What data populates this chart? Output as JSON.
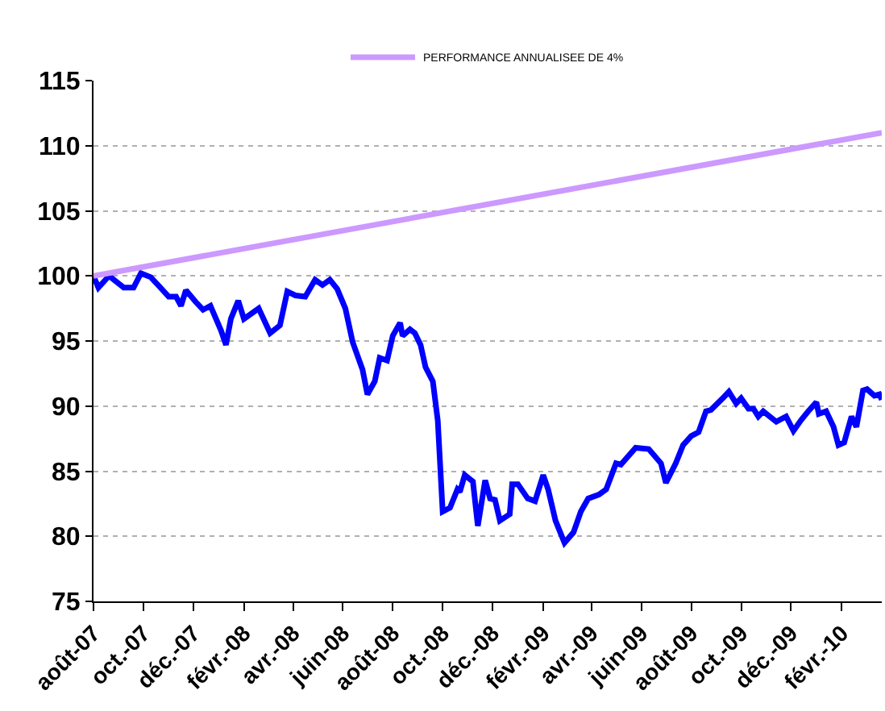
{
  "chart_data": {
    "type": "line",
    "legend": "top",
    "grid": "y",
    "line_style": "solid",
    "marker": "none",
    "xlim": [
      "2007-08-01",
      "2010-03-22"
    ],
    "ylim": [
      75,
      115
    ],
    "yticks": [
      75,
      80,
      85,
      90,
      95,
      100,
      105,
      110,
      115
    ],
    "xticks": [
      {
        "value": "2007-08-01",
        "label": "août-07"
      },
      {
        "value": "2007-10-01",
        "label": "oct.-07"
      },
      {
        "value": "2007-12-01",
        "label": "déc.-07"
      },
      {
        "value": "2008-02-01",
        "label": "févr.-08"
      },
      {
        "value": "2008-04-01",
        "label": "avr.-08"
      },
      {
        "value": "2008-06-01",
        "label": "juin-08"
      },
      {
        "value": "2008-08-01",
        "label": "août-08"
      },
      {
        "value": "2008-10-01",
        "label": "oct.-08"
      },
      {
        "value": "2008-12-01",
        "label": "déc.-08"
      },
      {
        "value": "2009-02-01",
        "label": "févr.-09"
      },
      {
        "value": "2009-04-01",
        "label": "avr.-09"
      },
      {
        "value": "2009-06-01",
        "label": "juin-09"
      },
      {
        "value": "2009-08-01",
        "label": "août-09"
      },
      {
        "value": "2009-10-01",
        "label": "oct.-09"
      },
      {
        "value": "2009-12-01",
        "label": "déc.-09"
      },
      {
        "value": "2010-02-01",
        "label": "févr.-10"
      }
    ],
    "series": [
      {
        "color": "#0000ff",
        "x": [
          "2007-08-01",
          "2007-08-07",
          "2007-08-20",
          "2007-09-07",
          "2007-09-19",
          "2007-09-28",
          "2007-10-10",
          "2007-10-19",
          "2007-11-01",
          "2007-11-10",
          "2007-11-16",
          "2007-11-22",
          "2007-12-04",
          "2007-12-13",
          "2007-12-22",
          "2008-01-04",
          "2008-01-10",
          "2008-01-16",
          "2008-01-25",
          "2008-02-01",
          "2008-02-19",
          "2008-03-04",
          "2008-03-16",
          "2008-03-25",
          "2008-04-04",
          "2008-04-16",
          "2008-04-28",
          "2008-05-07",
          "2008-05-16",
          "2008-05-25",
          "2008-06-04",
          "2008-06-13",
          "2008-06-25",
          "2008-07-01",
          "2008-07-10",
          "2008-07-16",
          "2008-07-25",
          "2008-08-01",
          "2008-08-10",
          "2008-08-13",
          "2008-08-22",
          "2008-08-28",
          "2008-09-04",
          "2008-09-10",
          "2008-09-19",
          "2008-09-25",
          "2008-10-01",
          "2008-10-10",
          "2008-10-19",
          "2008-10-22",
          "2008-10-28",
          "2008-11-07",
          "2008-11-13",
          "2008-11-22",
          "2008-11-28",
          "2008-12-04",
          "2008-12-10",
          "2008-12-22",
          "2008-12-25",
          "2009-01-01",
          "2009-01-13",
          "2009-01-22",
          "2009-02-01",
          "2009-02-07",
          "2009-02-16",
          "2009-02-27",
          "2009-03-10",
          "2009-03-19",
          "2009-03-28",
          "2009-04-10",
          "2009-04-19",
          "2009-05-01",
          "2009-05-07",
          "2009-05-25",
          "2009-06-10",
          "2009-06-25",
          "2009-07-01",
          "2009-07-13",
          "2009-07-22",
          "2009-08-01",
          "2009-08-10",
          "2009-08-19",
          "2009-08-25",
          "2009-09-10",
          "2009-09-16",
          "2009-09-25",
          "2009-10-01",
          "2009-10-10",
          "2009-10-16",
          "2009-10-22",
          "2009-10-28",
          "2009-11-13",
          "2009-11-25",
          "2009-12-04",
          "2009-12-13",
          "2009-12-22",
          "2010-01-01",
          "2010-01-04",
          "2010-01-13",
          "2010-01-22",
          "2010-01-28",
          "2010-02-04",
          "2010-02-13",
          "2010-02-19",
          "2010-02-27",
          "2010-03-04",
          "2010-03-13",
          "2010-03-19",
          "2010-03-22"
        ],
        "values": [
          100,
          99.1,
          100,
          99.1,
          99.1,
          100.2,
          99.9,
          99.3,
          98.4,
          98.4,
          97.7,
          98.9,
          98.0,
          97.4,
          97.7,
          95.8,
          94.7,
          96.7,
          98.1,
          96.7,
          97.5,
          95.6,
          96.2,
          98.8,
          98.5,
          98.4,
          99.7,
          99.3,
          99.7,
          99.0,
          97.5,
          94.9,
          92.8,
          90.9,
          91.9,
          93.7,
          93.5,
          95.4,
          96.4,
          95.4,
          95.9,
          95.6,
          94.7,
          93.0,
          91.9,
          88.9,
          81.9,
          82.2,
          83.6,
          83.4,
          84.7,
          84.2,
          80.8,
          84.3,
          82.9,
          82.8,
          81.2,
          81.7,
          84.0,
          84.0,
          82.9,
          82.7,
          84.7,
          83.6,
          81.2,
          79.5,
          80.3,
          81.9,
          82.9,
          83.2,
          83.6,
          85.6,
          85.5,
          86.8,
          86.7,
          85.6,
          84.1,
          85.6,
          87.0,
          87.7,
          88.0,
          89.6,
          89.7,
          90.7,
          91.1,
          90.2,
          90.6,
          89.8,
          89.8,
          89.2,
          89.6,
          88.8,
          89.2,
          88.1,
          88.9,
          89.6,
          90.3,
          89.4,
          89.6,
          88.4,
          87.0,
          87.2,
          89.2,
          88.4,
          91.2,
          91.3,
          90.8,
          90.9,
          90.5
        ]
      },
      {
        "name": "PERFORMANCE ANNUALISEE DE 4%",
        "color": "#cc99ff",
        "x": [
          "2007-08-01",
          "2010-03-22"
        ],
        "values": [
          100,
          111
        ]
      }
    ]
  }
}
